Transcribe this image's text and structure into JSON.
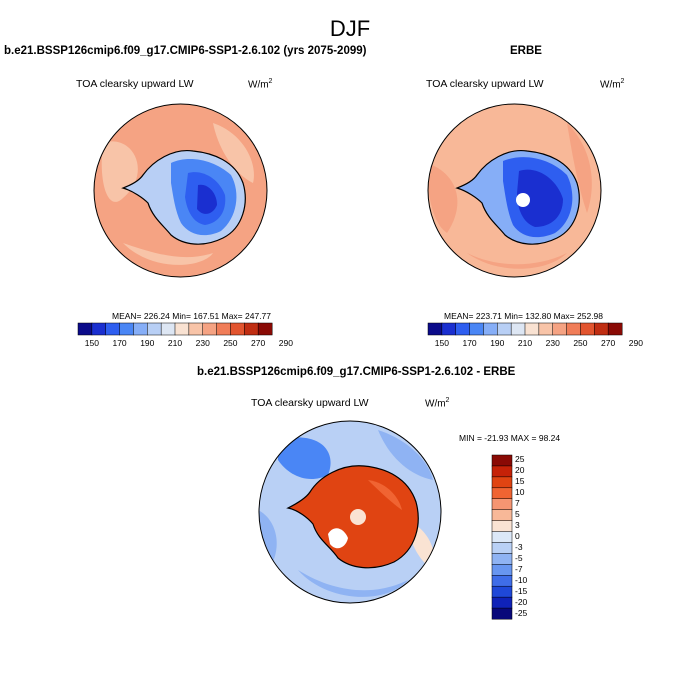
{
  "figure": {
    "season_title": "DJF"
  },
  "panels": {
    "model": {
      "title": "b.e21.BSSP126cmip6.f09_g17.CMIP6-SSP1-2.6.102 (yrs 2075-2099)",
      "variable": "TOA clearsky upward LW",
      "units_base": "W/m",
      "units_exp": "2",
      "stats": "MEAN= 226.24  Min= 167.51  Max= 247.77",
      "colorbar_labels": [
        "150",
        "170",
        "190",
        "210",
        "230",
        "250",
        "270",
        "290"
      ]
    },
    "obs": {
      "title": "ERBE",
      "variable": "TOA clearsky upward LW",
      "units_base": "W/m",
      "units_exp": "2",
      "stats": "MEAN= 223.71  Min= 132.80  Max= 252.98",
      "colorbar_labels": [
        "150",
        "170",
        "190",
        "210",
        "230",
        "250",
        "270",
        "290"
      ]
    },
    "diff": {
      "title": "b.e21.BSSP126cmip6.f09_g17.CMIP6-SSP1-2.6.102 - ERBE",
      "variable": "TOA clearsky upward LW",
      "units_base": "W/m",
      "units_exp": "2",
      "stats": "MIN = -21.93 MAX =  98.24",
      "colorbar_labels": [
        "25",
        "20",
        "15",
        "10",
        "7",
        "5",
        "3",
        "0",
        "-3",
        "-5",
        "-7",
        "-10",
        "-15",
        "-20",
        "-25"
      ]
    }
  },
  "colors": {
    "abs_scale": [
      "#0b0b8a",
      "#1a2fd0",
      "#2e5ef0",
      "#4a86f5",
      "#86aef7",
      "#b8cff5",
      "#dde6f3",
      "#f9e2d2",
      "#f8c4a8",
      "#f5a383",
      "#f07d58",
      "#e2552f",
      "#c02e12",
      "#8a0a05"
    ],
    "diff_scale": [
      "#8a0a05",
      "#c62208",
      "#e04412",
      "#f06432",
      "#f59572",
      "#f8b898",
      "#fae3d3",
      "#dce8f8",
      "#b9d0f5",
      "#8fb3f3",
      "#6896f0",
      "#3f6de8",
      "#1f48d8",
      "#0f22b8",
      "#08087a"
    ],
    "ocean_model": "#f5a383",
    "ocean_obs": "#f8b898",
    "ice_low": "#2e5ef0",
    "ice_mid": "#86aef7",
    "ice_core": "#1a2fd0",
    "diff_ocean": "#b9d0f5",
    "diff_land": "#e04412",
    "diff_cool": "#4a86f5",
    "diff_warm_pale": "#fae3d3"
  }
}
